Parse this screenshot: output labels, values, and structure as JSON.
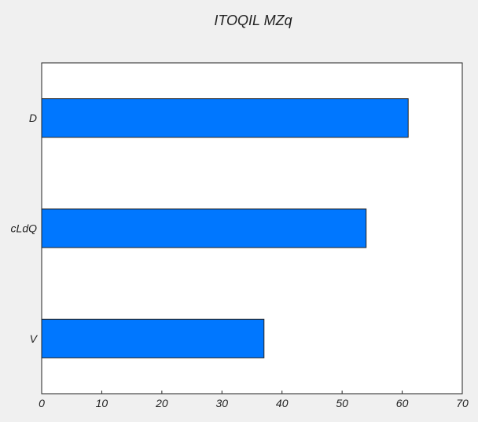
{
  "chart_data": {
    "type": "bar",
    "orientation": "horizontal",
    "title": "ITOQIL  MZq",
    "xlabel": "",
    "ylabel": "",
    "categories": [
      "D",
      "cLdQ",
      "V"
    ],
    "values": [
      61,
      54,
      37
    ],
    "xlim": [
      0,
      70
    ],
    "xticks": [
      "0",
      "10",
      "20",
      "30",
      "40",
      "50",
      "60",
      "70"
    ],
    "grid": false,
    "legend": "none",
    "bar_color": "#0077ff",
    "edge_color": "#222222",
    "plot_background": "#ffffff",
    "figure_background": "#f0f0f0"
  }
}
